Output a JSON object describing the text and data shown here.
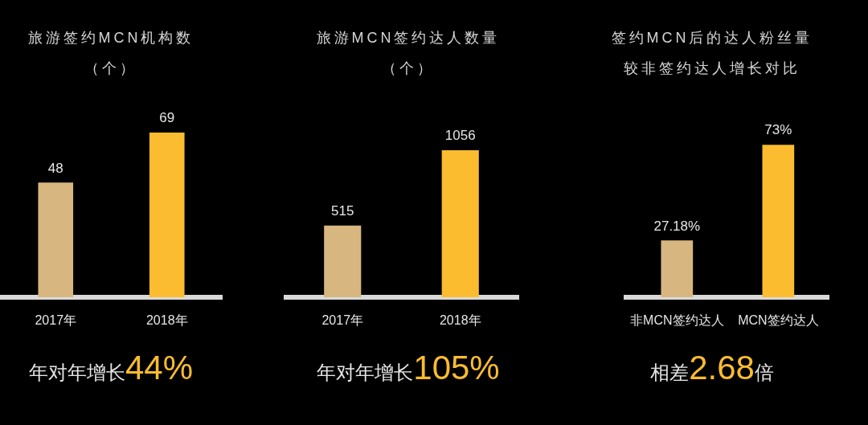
{
  "chart_data": [
    {
      "type": "bar",
      "title": "旅游签约MCN机构数",
      "subtitle": "（个）",
      "categories": [
        "2017年",
        "2018年"
      ],
      "values": [
        48,
        69
      ],
      "colors": [
        "#d7b77f",
        "#fbbc2f"
      ],
      "data_labels": true,
      "tick_labels": "x",
      "annotations": [
        "年对年增长44%"
      ]
    },
    {
      "type": "bar",
      "title": "旅游MCN签约达人数量",
      "subtitle": "（个）",
      "categories": [
        "2017年",
        "2018年"
      ],
      "values": [
        515,
        1056
      ],
      "colors": [
        "#d7b77f",
        "#fbbc2f"
      ],
      "data_labels": true,
      "tick_labels": "x",
      "annotations": [
        "年对年增长105%"
      ]
    },
    {
      "type": "bar",
      "title": "签约MCN后的达人粉丝量",
      "subtitle": "较非签约达人增长对比",
      "categories": [
        "非MCN签约达人",
        "MCN签约达人"
      ],
      "values": [
        27.18,
        73
      ],
      "value_labels": [
        "27.18%",
        "73%"
      ],
      "colors": [
        "#d7b77f",
        "#fbbc2f"
      ],
      "tick_labels": "x",
      "annotations": [
        "相差2.68倍"
      ]
    }
  ]
}
